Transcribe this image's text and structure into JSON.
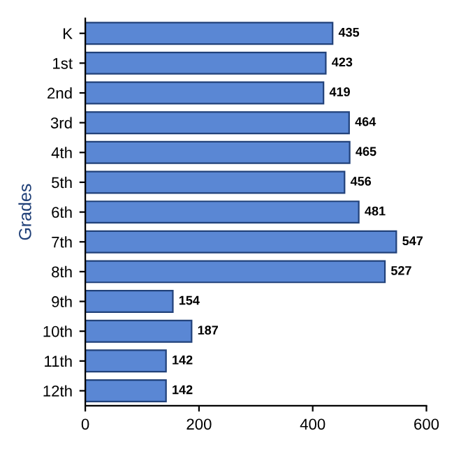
{
  "chart_data": {
    "type": "bar",
    "orientation": "horizontal",
    "ylabel": "Grades",
    "categories": [
      "K",
      "1st",
      "2nd",
      "3rd",
      "4th",
      "5th",
      "6th",
      "7th",
      "8th",
      "9th",
      "10th",
      "11th",
      "12th"
    ],
    "values": [
      435,
      423,
      419,
      464,
      465,
      456,
      481,
      547,
      527,
      154,
      187,
      142,
      142
    ],
    "color": "#5a87d4",
    "xlim": [
      0,
      600
    ],
    "xticks": [
      0,
      200,
      400,
      600
    ],
    "data_labels": true,
    "grid": false,
    "legend": false
  }
}
